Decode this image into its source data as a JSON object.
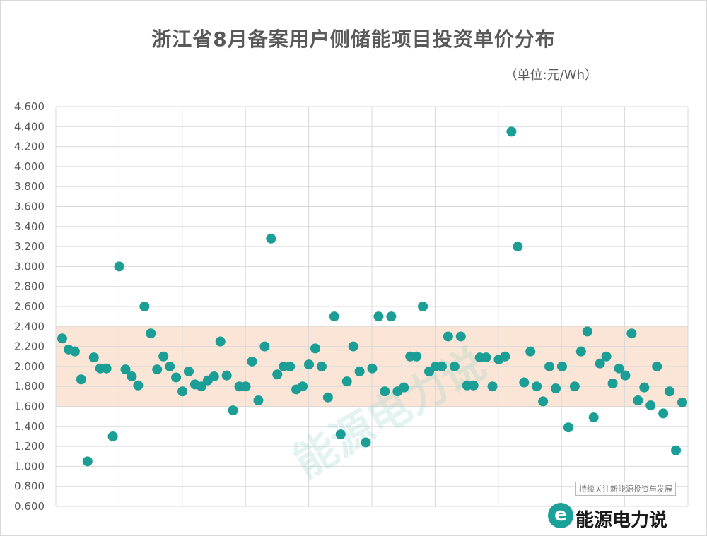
{
  "chart_data": {
    "type": "scatter",
    "title": "浙江省8月备案用户侧储能项目投资单价分布",
    "unit_label": "（单位:元/Wh）",
    "y_ticks": [
      "4.600",
      "4.400",
      "4.200",
      "4.000",
      "3.800",
      "3.600",
      "3.400",
      "3.200",
      "3.000",
      "2.800",
      "2.600",
      "2.400",
      "2.200",
      "2.000",
      "1.800",
      "1.600",
      "1.400",
      "1.200",
      "1.000",
      "0.800",
      "0.600"
    ],
    "ylim": [
      0.6,
      4.6
    ],
    "highlight_band": [
      1.6,
      2.4
    ],
    "grid": true,
    "marker_color": "#1a9e95",
    "band_color": "#fbe5d6",
    "values": [
      2.28,
      2.17,
      2.15,
      1.87,
      1.05,
      2.09,
      1.98,
      1.98,
      1.3,
      3.0,
      1.97,
      1.9,
      1.81,
      2.6,
      2.33,
      1.97,
      2.1,
      2.0,
      1.89,
      1.75,
      1.95,
      1.82,
      1.8,
      1.86,
      1.9,
      2.25,
      1.91,
      1.56,
      1.8,
      1.8,
      2.05,
      1.66,
      2.2,
      3.28,
      1.92,
      2.0,
      2.0,
      1.77,
      1.8,
      2.02,
      2.18,
      2.0,
      1.69,
      2.5,
      1.32,
      1.85,
      2.2,
      1.95,
      1.24,
      1.98,
      2.5,
      1.75,
      2.5,
      1.75,
      1.79,
      2.1,
      2.1,
      2.6,
      1.95,
      2.0,
      2.0,
      2.3,
      2.0,
      2.3,
      1.81,
      1.81,
      2.09,
      2.09,
      1.8,
      2.07,
      2.1,
      4.35,
      3.2,
      1.84,
      2.15,
      1.8,
      1.65,
      2.0,
      1.78,
      2.0,
      1.39,
      1.8,
      2.15,
      2.35,
      1.49,
      2.03,
      2.1,
      1.83,
      1.98,
      1.91,
      2.33,
      1.66,
      1.79,
      1.61,
      2.0,
      1.53,
      1.75,
      1.16,
      1.64
    ]
  },
  "watermark": {
    "text": "能源电力说",
    "logo_letter": "e",
    "logo_text": "能源电力说",
    "logo_tag": "持续关注新能源投资与发展"
  }
}
